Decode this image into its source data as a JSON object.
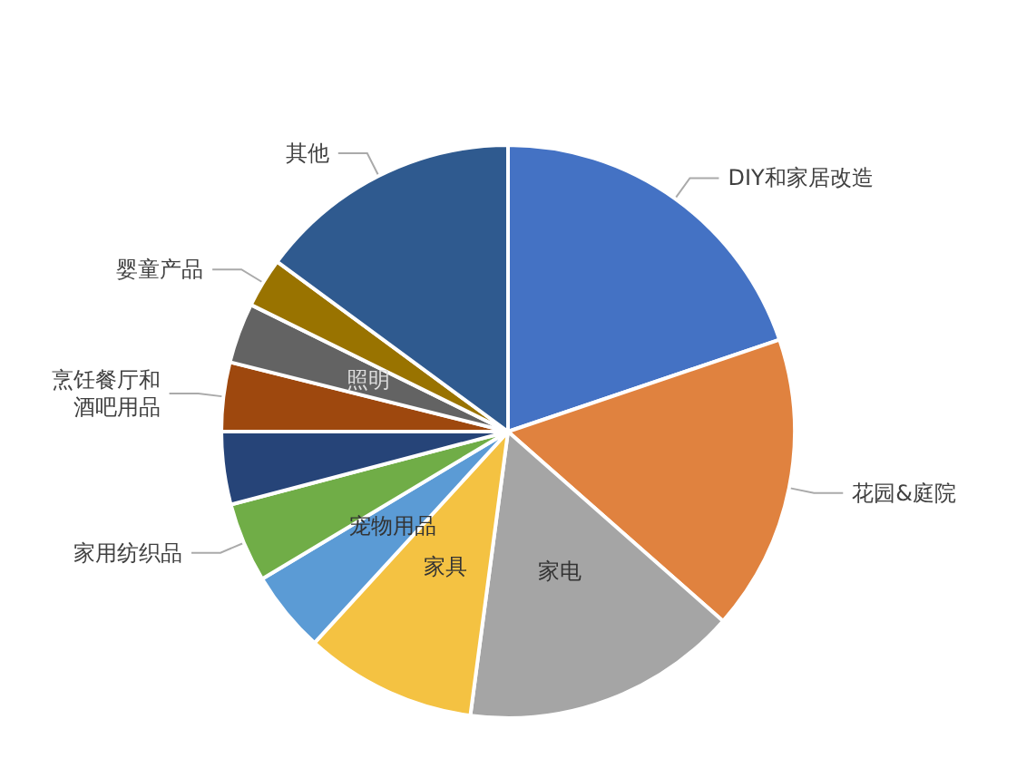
{
  "chart_data": {
    "type": "pie",
    "categories": [
      "DIY和家居改造",
      "花园&庭院",
      "家电",
      "家具",
      "宠物用品",
      "家用纺织品",
      null,
      "烹饪餐厅和酒吧用品",
      "照明",
      "婴童产品",
      "其他"
    ],
    "values": [
      19.8,
      16.7,
      15.6,
      9.7,
      4.6,
      4.5,
      4.1,
      3.9,
      3.4,
      2.8,
      14.9
    ],
    "colors": [
      "#4472c4",
      "#e0823f",
      "#a5a5a5",
      "#f4c242",
      "#5b9bd5",
      "#70ad47",
      "#264478",
      "#9e480e",
      "#636363",
      "#997300",
      "#2f5a8f"
    ]
  }
}
